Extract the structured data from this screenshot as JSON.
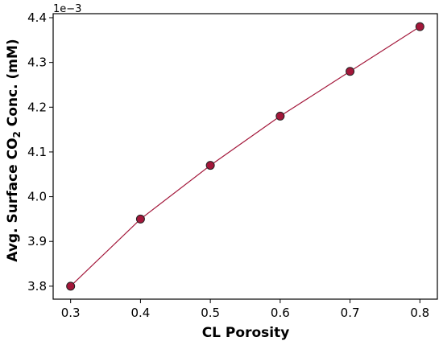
{
  "chart_data": {
    "type": "line",
    "x": [
      0.3,
      0.4,
      0.5,
      0.6,
      0.7,
      0.8
    ],
    "series": [
      {
        "values": [
          3.8,
          3.95,
          4.07,
          4.18,
          4.28,
          4.38
        ]
      }
    ],
    "xlabel": "CL Porosity",
    "ylabel": {
      "prefix": "Avg. Surface CO",
      "subscript": "2",
      "suffix": " Conc. (mM)"
    },
    "y_multiplier_label": "1e−3",
    "xticks": [
      "0.3",
      "0.4",
      "0.5",
      "0.6",
      "0.7",
      "0.8"
    ],
    "yticks": [
      "3.8",
      "3.9",
      "4.0",
      "4.1",
      "4.2",
      "4.3",
      "4.4"
    ],
    "xlim": [
      0.275,
      0.825
    ],
    "ylim": [
      3.771,
      4.409
    ],
    "grid": false,
    "line_color": "#a3173a",
    "marker_color": "#a3173a",
    "marker_edge_color": "#222222"
  }
}
